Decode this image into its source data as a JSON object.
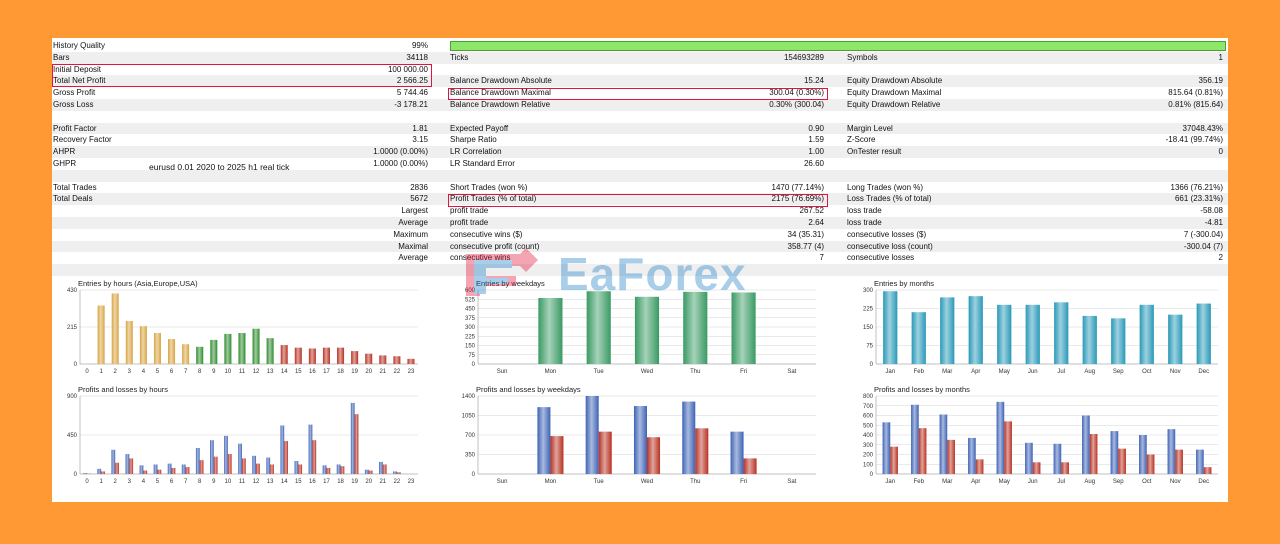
{
  "colors": {
    "background": "#FF9933",
    "highlight": "#e0143c",
    "quality_bar": "#8de86a",
    "buy": "#3e63b6",
    "sell": "#b83222"
  },
  "rows": [
    {
      "alt": false,
      "cells": [
        {
          "text": "History Quality"
        },
        {
          "text": "99%",
          "align": "r"
        }
      ]
    },
    {
      "alt": true,
      "cells": [
        {
          "text": "Bars"
        },
        {
          "text": "34118",
          "align": "r"
        },
        {
          "text": "Ticks"
        },
        {
          "text": "154693289",
          "align": "r"
        },
        {
          "text": "Symbols"
        },
        {
          "text": "1",
          "align": "r"
        }
      ]
    },
    {
      "alt": false,
      "cells": [
        {
          "text": "Initial Deposit"
        },
        {
          "text": "100 000.00",
          "align": "r"
        }
      ]
    },
    {
      "alt": true,
      "cells": [
        {
          "text": "Total Net Profit"
        },
        {
          "text": "2 566.25",
          "align": "r"
        },
        {
          "text": "Balance Drawdown Absolute"
        },
        {
          "text": "15.24",
          "align": "r"
        },
        {
          "text": "Equity Drawdown Absolute"
        },
        {
          "text": "356.19",
          "align": "r"
        }
      ]
    },
    {
      "alt": false,
      "cells": [
        {
          "text": "Gross Profit"
        },
        {
          "text": "5 744.46",
          "align": "r"
        },
        {
          "text": "Balance Drawdown Maximal"
        },
        {
          "text": "300.04 (0.30%)",
          "align": "r"
        },
        {
          "text": "Equity Drawdown Maximal"
        },
        {
          "text": "815.64 (0.81%)",
          "align": "r"
        }
      ]
    },
    {
      "alt": true,
      "cells": [
        {
          "text": "Gross Loss"
        },
        {
          "text": "-3 178.21",
          "align": "r"
        },
        {
          "text": "Balance Drawdown Relative"
        },
        {
          "text": "0.30% (300.04)",
          "align": "r"
        },
        {
          "text": "Equity Drawdown Relative"
        },
        {
          "text": "0.81% (815.64)",
          "align": "r"
        }
      ]
    },
    {
      "alt": false,
      "cells": []
    },
    {
      "alt": true,
      "cells": [
        {
          "text": "Profit Factor"
        },
        {
          "text": "1.81",
          "align": "r"
        },
        {
          "text": "Expected Payoff"
        },
        {
          "text": "0.90",
          "align": "r"
        },
        {
          "text": "Margin Level"
        },
        {
          "text": "37048.43%",
          "align": "r"
        }
      ]
    },
    {
      "alt": false,
      "cells": [
        {
          "text": "Recovery Factor"
        },
        {
          "text": "3.15",
          "align": "r"
        },
        {
          "text": "Sharpe Ratio"
        },
        {
          "text": "1.59",
          "align": "r"
        },
        {
          "text": "Z-Score"
        },
        {
          "text": "-18.41 (99.74%)",
          "align": "r"
        }
      ]
    },
    {
      "alt": true,
      "cells": [
        {
          "text": "AHPR"
        },
        {
          "text": "1.0000 (0.00%)",
          "align": "r"
        },
        {
          "text": "LR Correlation"
        },
        {
          "text": "1.00",
          "align": "r"
        },
        {
          "text": "OnTester result"
        },
        {
          "text": "0",
          "align": "r"
        }
      ]
    },
    {
      "alt": false,
      "cells": [
        {
          "text": "GHPR"
        },
        {
          "text": "1.0000 (0.00%)",
          "align": "r"
        },
        {
          "text": "LR Standard Error"
        },
        {
          "text": "26.60",
          "align": "r"
        }
      ]
    },
    {
      "alt": true,
      "cells": []
    },
    {
      "alt": false,
      "cells": [
        {
          "text": "Total Trades"
        },
        {
          "text": "2836",
          "align": "r"
        },
        {
          "text": "Short Trades (won %)"
        },
        {
          "text": "1470 (77.14%)",
          "align": "r"
        },
        {
          "text": "Long Trades (won %)"
        },
        {
          "text": "1366 (76.21%)",
          "align": "r"
        }
      ]
    },
    {
      "alt": true,
      "cells": [
        {
          "text": "Total Deals"
        },
        {
          "text": "5672",
          "align": "r"
        },
        {
          "text": "Profit Trades (% of total)"
        },
        {
          "text": "2175 (76.69%)",
          "align": "r"
        },
        {
          "text": "Loss Trades (% of total)"
        },
        {
          "text": "661 (23.31%)",
          "align": "r"
        }
      ]
    },
    {
      "alt": false,
      "cells": [
        {
          "text": "Largest",
          "align": "rl"
        },
        {
          "text": "",
          "align": "r"
        },
        {
          "text": "profit trade"
        },
        {
          "text": "267.52",
          "align": "r"
        },
        {
          "text": "loss trade"
        },
        {
          "text": "-58.08",
          "align": "r"
        }
      ]
    },
    {
      "alt": true,
      "cells": [
        {
          "text": "Average",
          "align": "rl"
        },
        {
          "text": "",
          "align": "r"
        },
        {
          "text": "profit trade"
        },
        {
          "text": "2.64",
          "align": "r"
        },
        {
          "text": "loss trade"
        },
        {
          "text": "-4.81",
          "align": "r"
        }
      ]
    },
    {
      "alt": false,
      "cells": [
        {
          "text": "Maximum",
          "align": "rl"
        },
        {
          "text": "",
          "align": "r"
        },
        {
          "text": "consecutive wins ($)"
        },
        {
          "text": "34 (35.31)",
          "align": "r"
        },
        {
          "text": "consecutive losses ($)"
        },
        {
          "text": "7 (-300.04)",
          "align": "r"
        }
      ]
    },
    {
      "alt": true,
      "cells": [
        {
          "text": "Maximal",
          "align": "rl"
        },
        {
          "text": "",
          "align": "r"
        },
        {
          "text": "consecutive profit (count)"
        },
        {
          "text": "358.77 (4)",
          "align": "r"
        },
        {
          "text": "consecutive loss (count)"
        },
        {
          "text": "-300.04 (7)",
          "align": "r"
        }
      ]
    },
    {
      "alt": false,
      "cells": [
        {
          "text": "Average",
          "align": "rl"
        },
        {
          "text": "",
          "align": "r"
        },
        {
          "text": "consecutive wins"
        },
        {
          "text": "7",
          "align": "r"
        },
        {
          "text": "consecutive losses"
        },
        {
          "text": "2",
          "align": "r"
        }
      ]
    },
    {
      "alt": true,
      "cells": []
    }
  ],
  "history_quality_percent": 99,
  "note": "eurusd 0.01 2020 to 2025 h1 real tick",
  "watermark": {
    "text": "EaForex"
  },
  "chart_data": [
    {
      "type": "bar",
      "title": "Entries by hours (Asia,Europe,USA)",
      "categories": [
        "0",
        "1",
        "2",
        "3",
        "4",
        "5",
        "6",
        "7",
        "8",
        "9",
        "10",
        "11",
        "12",
        "13",
        "14",
        "15",
        "16",
        "17",
        "18",
        "19",
        "20",
        "21",
        "22",
        "23"
      ],
      "values": [
        0,
        340,
        410,
        250,
        220,
        180,
        145,
        115,
        100,
        140,
        175,
        180,
        205,
        150,
        110,
        95,
        90,
        95,
        95,
        75,
        60,
        50,
        45,
        30
      ],
      "colors": [
        "#d9a441",
        "#d9a441",
        "#d9a441",
        "#d9a441",
        "#d9a441",
        "#d9a441",
        "#d9a441",
        "#d9a441",
        "#2e8b2e",
        "#2e8b2e",
        "#2e8b2e",
        "#2e8b2e",
        "#2e8b2e",
        "#2e8b2e",
        "#b83222",
        "#b83222",
        "#b83222",
        "#b83222",
        "#b83222",
        "#b83222",
        "#b83222",
        "#b83222",
        "#b83222",
        "#b83222"
      ],
      "yticks": [
        "0",
        "215",
        "430"
      ],
      "ylim": [
        0,
        430
      ]
    },
    {
      "type": "bar",
      "title": "Entries by weekdays",
      "categories": [
        "Sun",
        "Mon",
        "Tue",
        "Wed",
        "Thu",
        "Fri",
        "Sat"
      ],
      "values": [
        0,
        535,
        590,
        545,
        585,
        580,
        0
      ],
      "colors": [
        "#3a9a63",
        "#3a9a63",
        "#3a9a63",
        "#3a9a63",
        "#3a9a63",
        "#3a9a63",
        "#3a9a63"
      ],
      "yticks": [
        "0",
        "75",
        "150",
        "225",
        "300",
        "375",
        "450",
        "525",
        "600"
      ],
      "ylim": [
        0,
        600
      ]
    },
    {
      "type": "bar",
      "title": "Entries by months",
      "categories": [
        "Jan",
        "Feb",
        "Mar",
        "Apr",
        "May",
        "Jun",
        "Jul",
        "Aug",
        "Sep",
        "Oct",
        "Nov",
        "Dec"
      ],
      "values": [
        295,
        210,
        270,
        275,
        240,
        240,
        250,
        195,
        185,
        240,
        200,
        245
      ],
      "colors": [
        "#2899b8",
        "#2899b8",
        "#2899b8",
        "#2899b8",
        "#2899b8",
        "#2899b8",
        "#2899b8",
        "#2899b8",
        "#2899b8",
        "#2899b8",
        "#2899b8",
        "#2899b8"
      ],
      "yticks": [
        "0",
        "75",
        "150",
        "225",
        "300"
      ],
      "ylim": [
        0,
        300
      ]
    },
    {
      "type": "bar",
      "title": "Profits and losses by hours",
      "categories": [
        "0",
        "1",
        "2",
        "3",
        "4",
        "5",
        "6",
        "7",
        "8",
        "9",
        "10",
        "11",
        "12",
        "13",
        "14",
        "15",
        "16",
        "17",
        "18",
        "19",
        "20",
        "21",
        "22",
        "23"
      ],
      "series": [
        {
          "name": "",
          "values": [
            10,
            60,
            280,
            230,
            100,
            110,
            120,
            110,
            300,
            390,
            440,
            350,
            210,
            190,
            560,
            150,
            570,
            100,
            110,
            820,
            50,
            140,
            30,
            0
          ]
        },
        {
          "name": "",
          "values": [
            5,
            30,
            130,
            180,
            40,
            50,
            70,
            80,
            160,
            200,
            230,
            180,
            120,
            110,
            380,
            110,
            390,
            70,
            90,
            690,
            40,
            110,
            20,
            0
          ]
        }
      ],
      "yticks": [
        "0",
        "450",
        "900"
      ],
      "ylim": [
        0,
        900
      ]
    },
    {
      "type": "bar",
      "title": "Profits and losses by weekdays",
      "categories": [
        "Sun",
        "Mon",
        "Tue",
        "Wed",
        "Thu",
        "Fri",
        "Sat"
      ],
      "series": [
        {
          "name": "",
          "values": [
            0,
            1200,
            1400,
            1220,
            1300,
            760,
            0
          ]
        },
        {
          "name": "",
          "values": [
            0,
            680,
            760,
            660,
            820,
            280,
            0
          ]
        }
      ],
      "yticks": [
        "0",
        "350",
        "700",
        "1050",
        "1400"
      ],
      "ylim": [
        0,
        1400
      ]
    },
    {
      "type": "bar",
      "title": "Profits and losses by months",
      "categories": [
        "Jan",
        "Feb",
        "Mar",
        "Apr",
        "May",
        "Jun",
        "Jul",
        "Aug",
        "Sep",
        "Oct",
        "Nov",
        "Dec"
      ],
      "series": [
        {
          "name": "",
          "values": [
            530,
            710,
            610,
            370,
            740,
            320,
            310,
            600,
            440,
            400,
            460,
            250
          ]
        },
        {
          "name": "",
          "values": [
            280,
            470,
            350,
            150,
            540,
            120,
            120,
            410,
            260,
            200,
            250,
            70
          ]
        }
      ],
      "yticks": [
        "0",
        "100",
        "200",
        "300",
        "400",
        "500",
        "600",
        "700",
        "800"
      ],
      "ylim": [
        0,
        800
      ]
    }
  ]
}
